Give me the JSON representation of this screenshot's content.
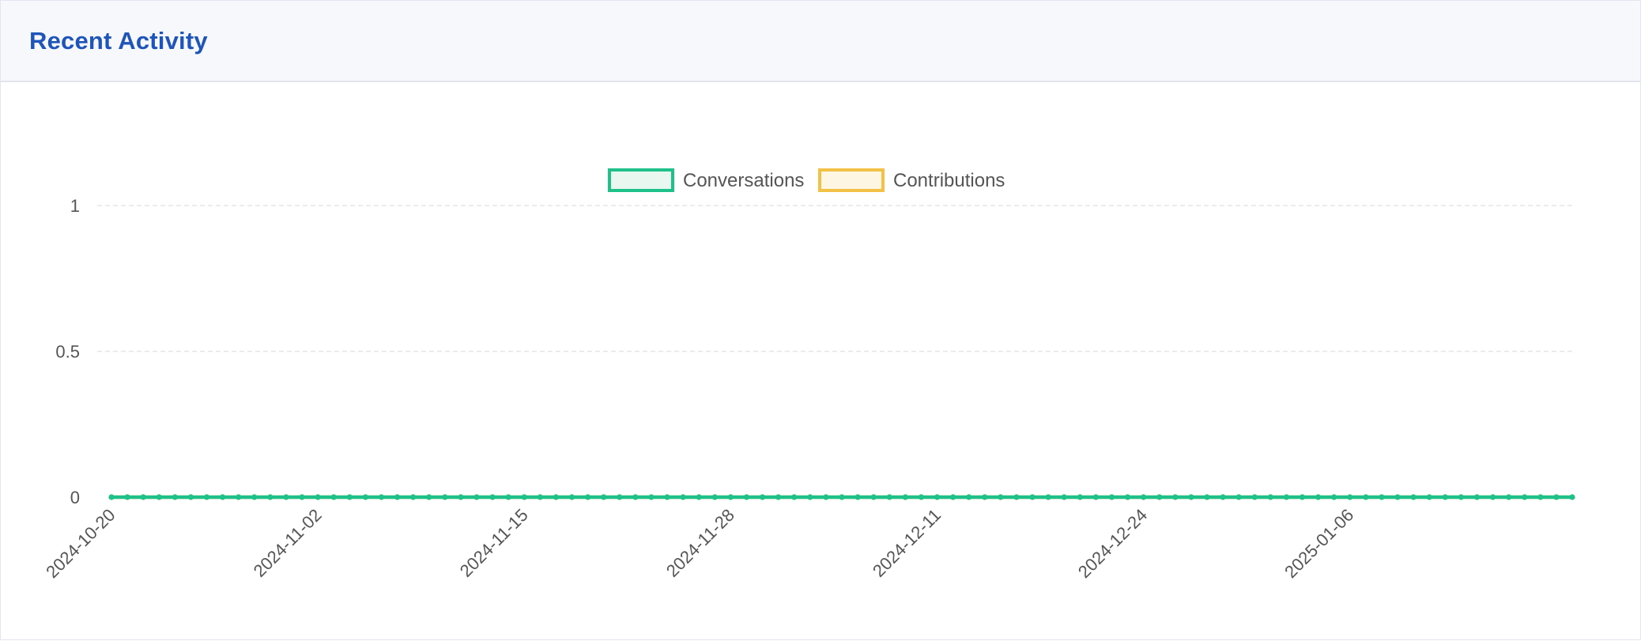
{
  "card": {
    "title": "Recent Activity"
  },
  "chart_data": {
    "type": "line",
    "x_start": "2024-10-20",
    "x_end": "2025-01-20",
    "x_tick_labels": [
      "2024-10-20",
      "2024-11-02",
      "2024-11-15",
      "2024-11-28",
      "2024-12-11",
      "2024-12-24",
      "2025-01-06"
    ],
    "y_ticks": [
      0,
      0.5,
      1
    ],
    "y_tick_labels": [
      "0",
      "0.5",
      "1"
    ],
    "ylim": [
      0,
      1
    ],
    "grid": true,
    "legend_position": "top-center",
    "series": [
      {
        "name": "Conversations",
        "color": "#1fc18a",
        "fill": "#e8f8f1",
        "constant_value": 0
      },
      {
        "name": "Contributions",
        "color": "#f2c146",
        "fill": "#fdf6e3",
        "constant_value": 0
      }
    ]
  }
}
